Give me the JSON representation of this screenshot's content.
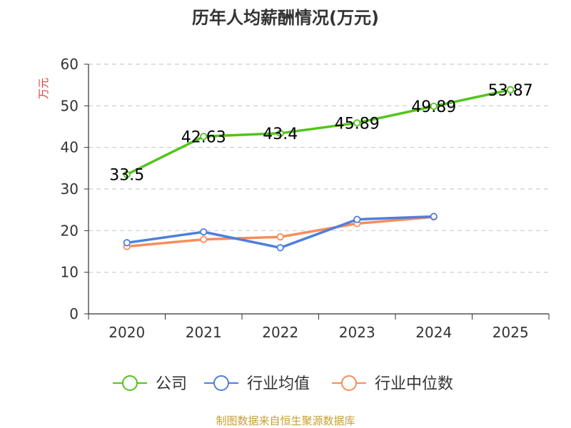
{
  "chart_data": {
    "type": "line",
    "title": "历年人均薪酬情况(万元)",
    "ylabel": "万元",
    "xlabel": "",
    "ylim": [
      0,
      60
    ],
    "yticks": [
      0,
      10,
      20,
      30,
      40,
      50,
      60
    ],
    "categories": [
      "2020",
      "2021",
      "2022",
      "2023",
      "2024",
      "2025"
    ],
    "grid": "horizontal-dashed",
    "legend_position": "bottom",
    "series": [
      {
        "name": "公司",
        "color": "#52c41a",
        "values": [
          33.5,
          42.63,
          43.4,
          45.89,
          49.89,
          53.87
        ],
        "labels": [
          "33.5",
          "42.63",
          "43.4",
          "45.89",
          "49.89",
          "53.87"
        ]
      },
      {
        "name": "行业均值",
        "color": "#4e7fdc",
        "values": [
          17.1,
          19.7,
          15.9,
          22.7,
          23.4,
          null
        ]
      },
      {
        "name": "行业中位数",
        "color": "#f78d5c",
        "values": [
          16.2,
          17.9,
          18.5,
          21.7,
          23.3,
          null
        ]
      }
    ]
  },
  "source": "制图数据来自恒生聚源数据库",
  "colors": {
    "title": "#333333",
    "axis": "#333333",
    "grid": "#cccccc",
    "ylabel": "#e03c3c",
    "source": "#c8a030"
  }
}
